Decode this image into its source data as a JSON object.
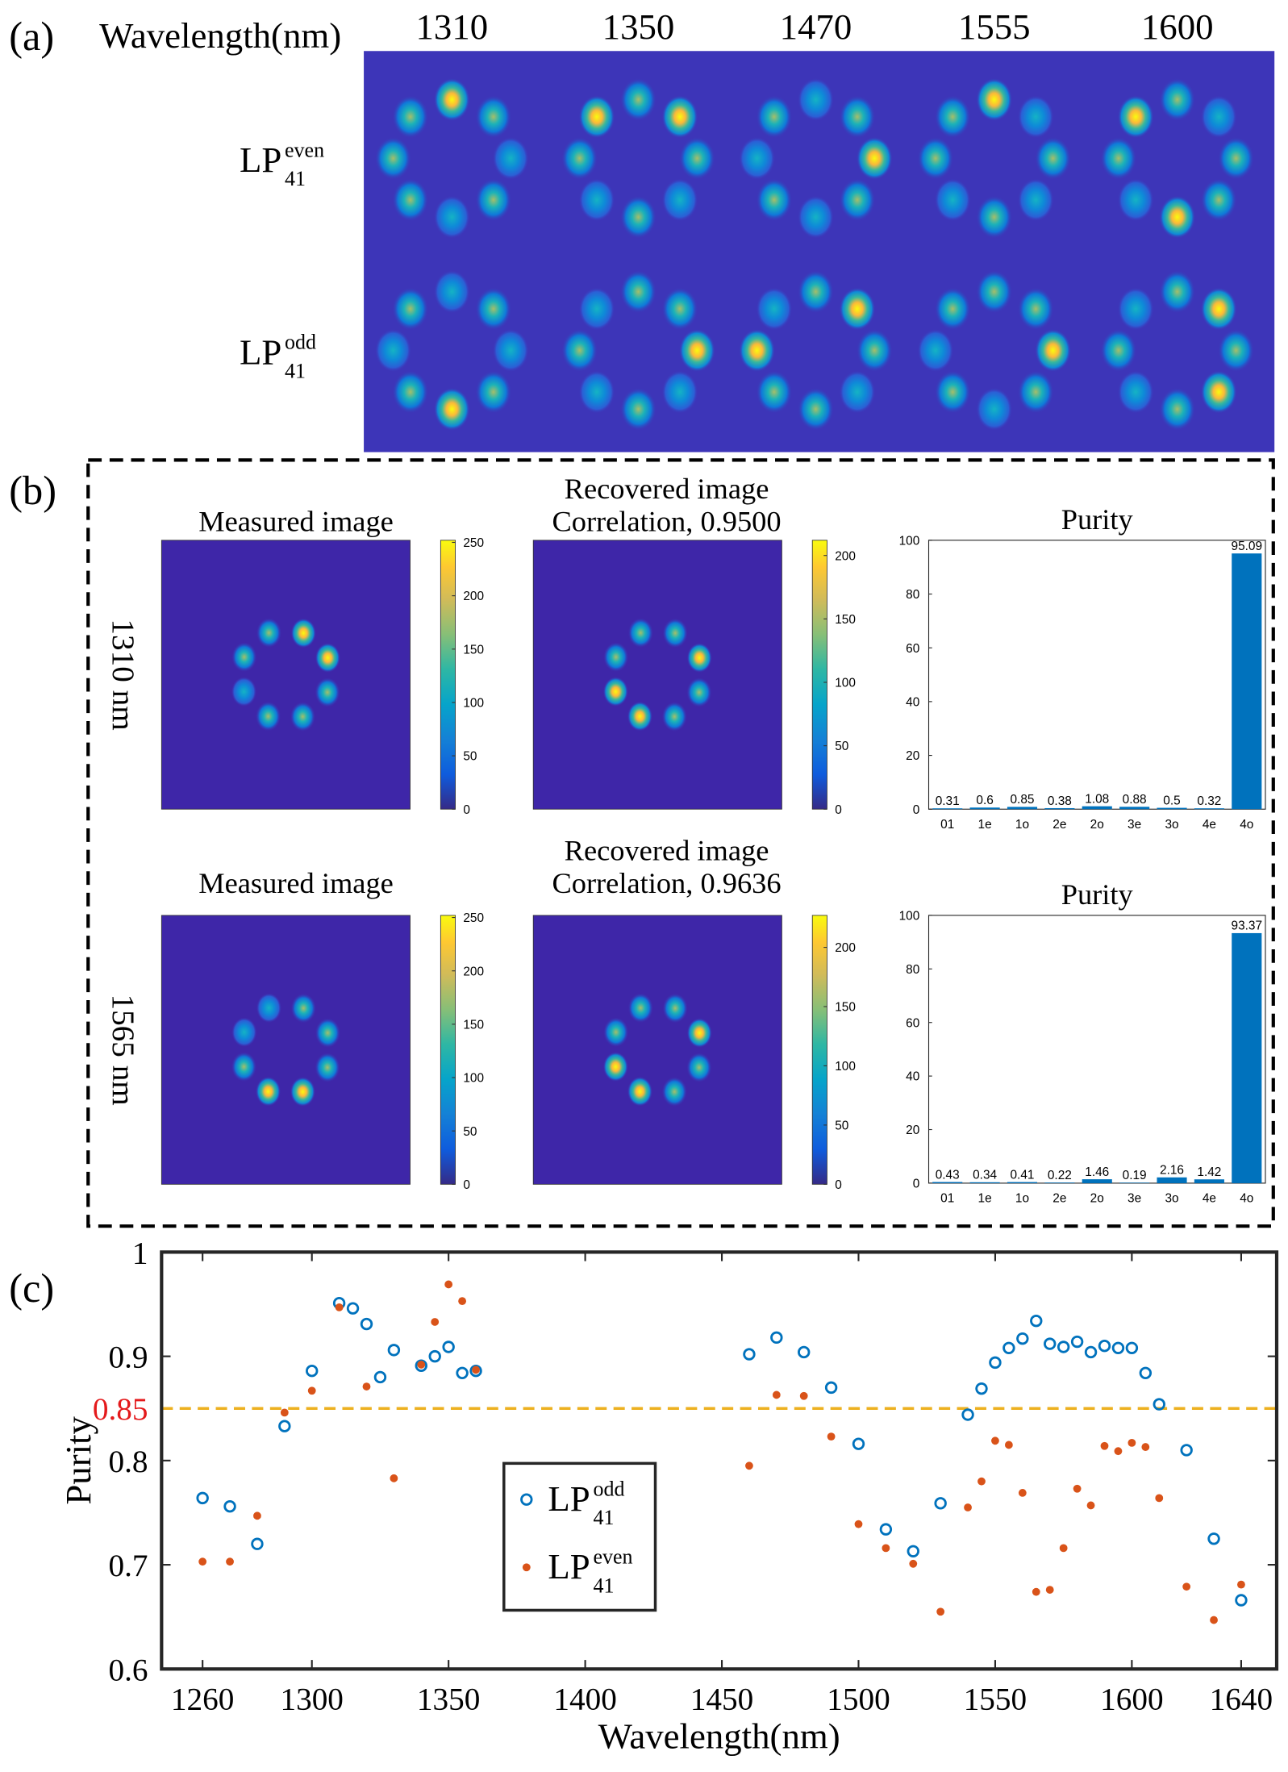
{
  "panel_a": {
    "label": "(a)",
    "axis_label": "Wavelength(nm)",
    "wavelengths": [
      "1310",
      "1350",
      "1470",
      "1555",
      "1600"
    ],
    "rows": [
      {
        "base": "LP",
        "sub": "41",
        "sup": "even"
      },
      {
        "base": "LP",
        "sub": "41",
        "sup": "odd"
      }
    ]
  },
  "panel_b": {
    "label": "(b)",
    "rows": [
      {
        "label": "1310 nm",
        "measured": {
          "title": "Measured image",
          "clim": [
            0,
            252
          ],
          "cticks": [
            0,
            50,
            100,
            150,
            200,
            250
          ]
        },
        "recovered": {
          "title": "Recovered image",
          "subtitle": "Correlation, 0.9500",
          "clim": [
            0,
            212
          ],
          "cticks": [
            0,
            50,
            100,
            150,
            200
          ]
        }
      },
      {
        "label": "1565 nm",
        "measured": {
          "title": "Measured image",
          "clim": [
            0,
            252
          ],
          "cticks": [
            0,
            50,
            100,
            150,
            200,
            250
          ]
        },
        "recovered": {
          "title": "Recovered image",
          "subtitle": "Correlation, 0.9636",
          "clim": [
            0,
            227
          ],
          "cticks": [
            0,
            50,
            100,
            150,
            200
          ]
        }
      }
    ]
  },
  "panel_c": {
    "label": "(c)"
  },
  "chart_data": [
    {
      "type": "bar",
      "title": "Purity",
      "categories": [
        "01",
        "1e",
        "1o",
        "2e",
        "2o",
        "3e",
        "3o",
        "4e",
        "4o"
      ],
      "values": [
        0.31,
        0.6,
        0.85,
        0.38,
        1.08,
        0.88,
        0.5,
        0.32,
        95.09
      ],
      "color": "#0072bd",
      "ylim": [
        0,
        100
      ],
      "yticks": [
        0,
        20,
        40,
        60,
        80,
        100
      ]
    },
    {
      "type": "bar",
      "title": "Purity",
      "categories": [
        "01",
        "1e",
        "1o",
        "2e",
        "2o",
        "3e",
        "3o",
        "4e",
        "4o"
      ],
      "values": [
        0.43,
        0.34,
        0.41,
        0.22,
        1.46,
        0.19,
        2.16,
        1.42,
        93.37
      ],
      "color": "#0072bd",
      "ylim": [
        0,
        100
      ],
      "yticks": [
        0,
        20,
        40,
        60,
        80,
        100
      ]
    },
    {
      "type": "scatter",
      "xlabel": "Wavelength(nm)",
      "ylabel": "Purity",
      "x": [
        1260,
        1270,
        1280,
        1290,
        1300,
        1310,
        1315,
        1320,
        1325,
        1330,
        1340,
        1345,
        1350,
        1355,
        1360,
        1460,
        1470,
        1480,
        1490,
        1500,
        1510,
        1520,
        1530,
        1540,
        1545,
        1550,
        1555,
        1560,
        1565,
        1570,
        1575,
        1580,
        1585,
        1590,
        1595,
        1600,
        1605,
        1610,
        1620,
        1630,
        1640
      ],
      "series": [
        {
          "name": {
            "base": "LP",
            "sub": "41",
            "sup": "odd"
          },
          "color": "#0072bd",
          "marker": "circle",
          "values": [
            0.764,
            0.756,
            0.72,
            0.833,
            0.886,
            0.951,
            0.946,
            0.931,
            0.88,
            0.906,
            0.891,
            0.9,
            0.909,
            0.884,
            0.886,
            0.902,
            0.918,
            0.904,
            0.87,
            0.816,
            0.734,
            0.713,
            0.759,
            0.844,
            0.869,
            0.894,
            0.908,
            0.917,
            0.934,
            0.912,
            0.909,
            0.914,
            0.904,
            0.91,
            0.908,
            0.908,
            0.884,
            0.854,
            0.81,
            0.725,
            0.666
          ]
        },
        {
          "name": {
            "base": "LP",
            "sub": "41",
            "sup": "even"
          },
          "color": "#d95319",
          "marker": "dot",
          "values": [
            0.703,
            0.703,
            0.747,
            0.846,
            0.867,
            0.947,
            null,
            0.871,
            null,
            0.783,
            0.892,
            0.933,
            0.969,
            0.953,
            0.887,
            0.795,
            0.863,
            0.862,
            0.823,
            0.739,
            0.716,
            0.701,
            0.655,
            0.755,
            0.78,
            0.819,
            0.815,
            0.769,
            0.674,
            0.676,
            0.716,
            0.773,
            0.757,
            0.814,
            0.809,
            0.817,
            0.813,
            0.764,
            0.679,
            0.647,
            0.681
          ]
        }
      ],
      "xlim": [
        1245,
        1653
      ],
      "ylim": [
        0.6,
        1
      ],
      "xticks": [
        1260,
        1300,
        1350,
        1400,
        1450,
        1500,
        1550,
        1600,
        1640
      ],
      "yticks": [
        0.6,
        0.7,
        0.8,
        0.9,
        1
      ],
      "threshold": {
        "value": 0.85,
        "color": "#edb120",
        "label_color": "#e41a1c"
      }
    }
  ]
}
